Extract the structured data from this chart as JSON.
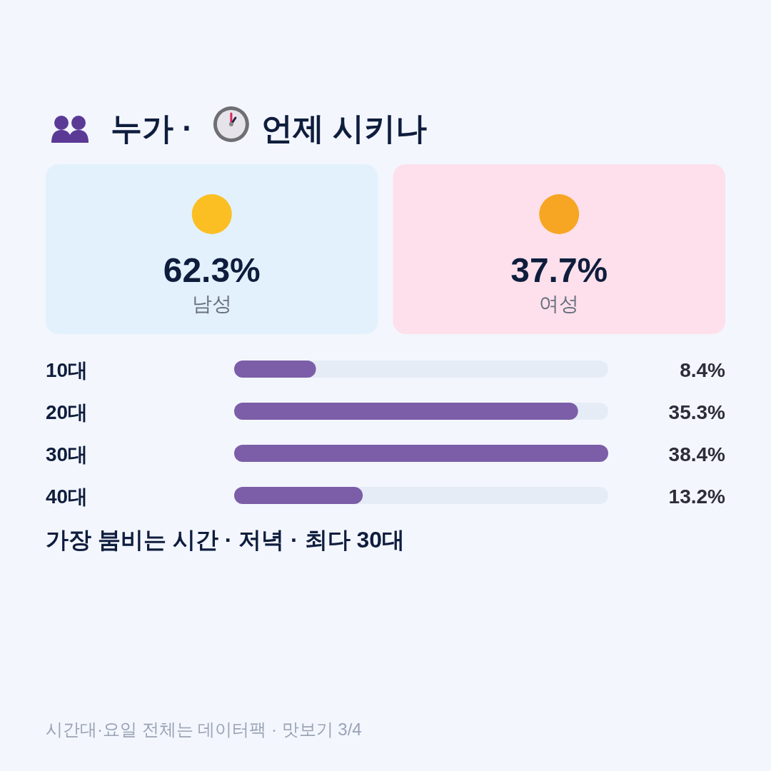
{
  "chart_data": [
    {
      "type": "other",
      "title": "누가 · 언제 시키나",
      "categories": [
        "남성",
        "여성"
      ],
      "value_labels": [
        "62.3%",
        "37.7%"
      ],
      "colors": [
        "#e3f1fc",
        "#fde0ec"
      ]
    },
    {
      "type": "bar",
      "orientation": "horizontal",
      "categories": [
        "10대",
        "20대",
        "30대",
        "40대"
      ],
      "values": [
        8.4,
        35.3,
        38.4,
        13.2
      ],
      "value_labels": [
        "8.4%",
        "35.3%",
        "38.4%",
        "13.2%"
      ],
      "color": "#7b5ea7",
      "annotations": [
        "가장 붐비는 시간 · 저녁 · 최다 30대",
        "시간대·요일 전체는 데이터팩 · 맛보기 3/4"
      ]
    }
  ]
}
